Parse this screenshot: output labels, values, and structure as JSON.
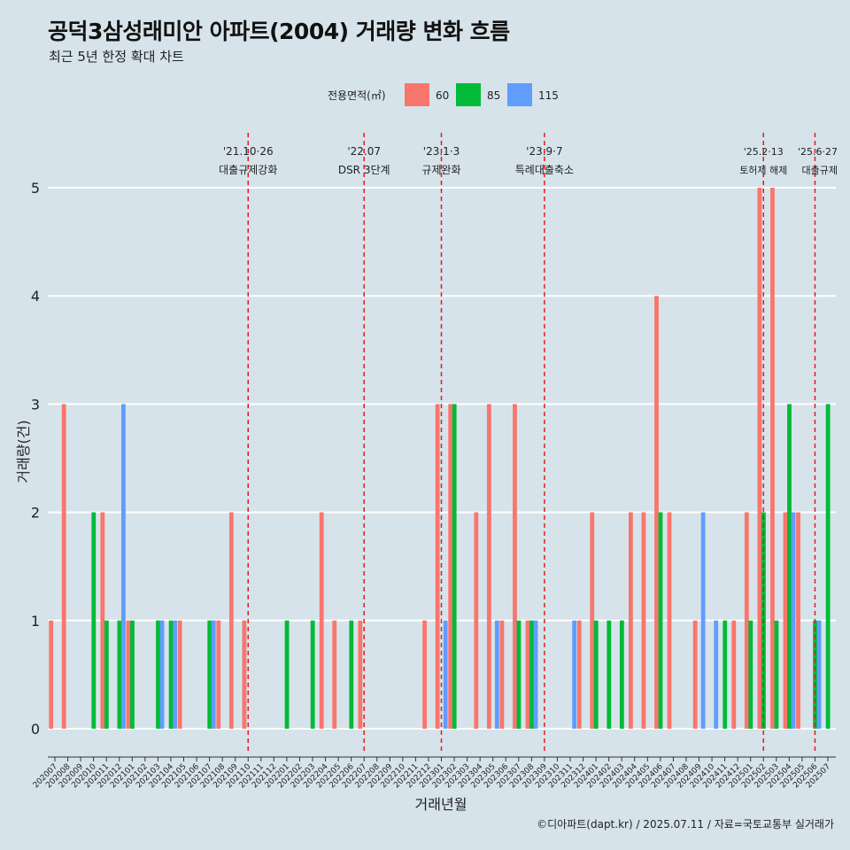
{
  "title": "공덕3삼성래미안 아파트(2004) 거래량 변화 흐름",
  "subtitle": "최근 5년 한정 확대 차트",
  "caption": "©디아파트(dapt.kr) / 2025.07.11 / 자료=국토교통부 실거래가",
  "colors": {
    "background": "#d6e3ea",
    "grid": "#ffffff",
    "event_line": "#e41a1c",
    "series": [
      "#f8766d",
      "#00ba38",
      "#619cff"
    ]
  },
  "chart_data": {
    "type": "bar",
    "barmode": "dodge",
    "xlabel": "거래년월",
    "ylabel": "거래량(건)",
    "ylim": [
      0,
      5
    ],
    "yticks": [
      0,
      1,
      2,
      3,
      4,
      5
    ],
    "grid": true,
    "legend_title": "전용면적(㎡)",
    "legend_position": "top",
    "categories": [
      "202007",
      "202008",
      "202009",
      "202010",
      "202011",
      "202012",
      "202101",
      "202102",
      "202103",
      "202104",
      "202105",
      "202106",
      "202107",
      "202108",
      "202109",
      "202110",
      "202111",
      "202112",
      "202201",
      "202202",
      "202203",
      "202204",
      "202205",
      "202206",
      "202207",
      "202208",
      "202209",
      "202210",
      "202211",
      "202212",
      "202301",
      "202302",
      "202303",
      "202304",
      "202305",
      "202306",
      "202307",
      "202308",
      "202309",
      "202310",
      "202311",
      "202312",
      "202401",
      "202402",
      "202403",
      "202404",
      "202405",
      "202406",
      "202407",
      "202408",
      "202409",
      "202410",
      "202411",
      "202412",
      "202501",
      "202502",
      "202503",
      "202504",
      "202505",
      "202506",
      "202507"
    ],
    "series": [
      {
        "name": "60",
        "values": [
          1,
          3,
          0,
          0,
          2,
          0,
          1,
          0,
          0,
          0,
          1,
          0,
          0,
          1,
          2,
          1,
          0,
          0,
          0,
          0,
          0,
          2,
          1,
          0,
          1,
          0,
          0,
          0,
          0,
          1,
          3,
          3,
          0,
          2,
          3,
          1,
          3,
          1,
          0,
          0,
          0,
          1,
          2,
          0,
          0,
          2,
          2,
          4,
          2,
          0,
          1,
          0,
          0,
          1,
          2,
          5,
          5,
          2,
          2,
          0,
          0
        ]
      },
      {
        "name": "85",
        "values": [
          0,
          0,
          0,
          2,
          1,
          1,
          1,
          0,
          1,
          1,
          0,
          0,
          1,
          0,
          0,
          0,
          0,
          0,
          1,
          0,
          1,
          0,
          0,
          1,
          0,
          0,
          0,
          0,
          0,
          0,
          0,
          3,
          0,
          0,
          0,
          0,
          1,
          1,
          0,
          0,
          0,
          0,
          1,
          1,
          1,
          0,
          0,
          2,
          0,
          0,
          0,
          0,
          1,
          0,
          1,
          2,
          1,
          3,
          0,
          1,
          3
        ]
      },
      {
        "name": "115",
        "values": [
          0,
          0,
          0,
          0,
          0,
          3,
          0,
          0,
          1,
          1,
          0,
          0,
          1,
          0,
          0,
          0,
          0,
          0,
          0,
          0,
          0,
          0,
          0,
          0,
          0,
          0,
          0,
          0,
          0,
          0,
          1,
          0,
          0,
          0,
          1,
          0,
          0,
          1,
          0,
          0,
          1,
          0,
          0,
          0,
          0,
          0,
          0,
          0,
          0,
          0,
          2,
          1,
          0,
          0,
          0,
          0,
          0,
          2,
          0,
          1,
          0
        ]
      }
    ],
    "events": [
      {
        "x": "202110",
        "date": "'21.10·26",
        "label": "대출규제강화"
      },
      {
        "x": "202207",
        "date": "'22.07",
        "label": "DSR 3단계"
      },
      {
        "x": "202301",
        "date": "'23.1·3",
        "label": "규제완화"
      },
      {
        "x": "202309",
        "date": "'23.9·7",
        "label": "특례대출축소"
      },
      {
        "x": "202502",
        "date": "'25.2·13",
        "label": "토허제 해제"
      },
      {
        "x": "202506",
        "date": "'25.6·27",
        "label": "대출규제"
      }
    ]
  }
}
